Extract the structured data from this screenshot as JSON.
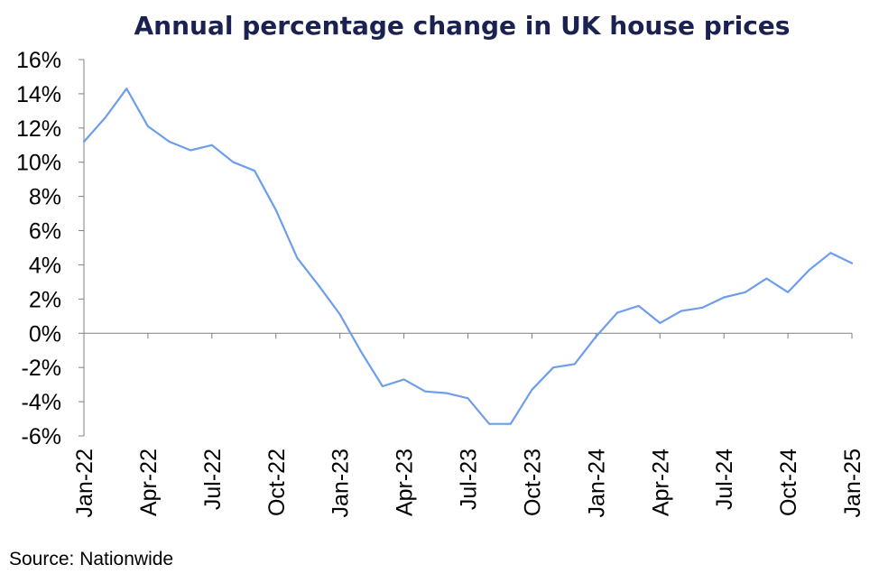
{
  "chart_data": {
    "type": "line",
    "title": "Annual percentage change in UK house prices",
    "source": "Source: Nationwide",
    "xlabel": "",
    "ylabel": "",
    "ylim": [
      -6,
      16
    ],
    "yticks": [
      16,
      14,
      12,
      10,
      8,
      6,
      4,
      2,
      0,
      -2,
      -4,
      -6
    ],
    "ytick_labels": [
      "16%",
      "14%",
      "12%",
      "10%",
      "8%",
      "6%",
      "4%",
      "2%",
      "0%",
      "-2%",
      "-4%",
      "-6%"
    ],
    "xtick_labels": [
      "Jan-22",
      "Apr-22",
      "Jul-22",
      "Oct-22",
      "Jan-23",
      "Apr-23",
      "Jul-23",
      "Oct-23",
      "Jan-24",
      "Apr-24",
      "Jul-24",
      "Oct-24",
      "Jan-25"
    ],
    "xtick_indices": [
      0,
      3,
      6,
      9,
      12,
      15,
      18,
      21,
      24,
      27,
      30,
      33,
      36
    ],
    "x": [
      "Jan-22",
      "Feb-22",
      "Mar-22",
      "Apr-22",
      "May-22",
      "Jun-22",
      "Jul-22",
      "Aug-22",
      "Sep-22",
      "Oct-22",
      "Nov-22",
      "Dec-22",
      "Jan-23",
      "Feb-23",
      "Mar-23",
      "Apr-23",
      "May-23",
      "Jun-23",
      "Jul-23",
      "Aug-23",
      "Sep-23",
      "Oct-23",
      "Nov-23",
      "Dec-23",
      "Jan-24",
      "Feb-24",
      "Mar-24",
      "Apr-24",
      "May-24",
      "Jun-24",
      "Jul-24",
      "Aug-24",
      "Sep-24",
      "Oct-24",
      "Nov-24",
      "Dec-24",
      "Jan-25"
    ],
    "series": [
      {
        "name": "Annual % change",
        "color": "#6d9eeb",
        "values": [
          11.2,
          12.6,
          14.3,
          12.1,
          11.2,
          10.7,
          11.0,
          10.0,
          9.5,
          7.2,
          4.4,
          2.8,
          1.1,
          -1.1,
          -3.1,
          -2.7,
          -3.4,
          -3.5,
          -3.8,
          -5.3,
          -5.3,
          -3.3,
          -2.0,
          -1.8,
          -0.2,
          1.2,
          1.6,
          0.6,
          1.3,
          1.5,
          2.1,
          2.4,
          3.2,
          2.4,
          3.7,
          4.7,
          4.1
        ]
      }
    ],
    "grid": false,
    "zero_line_color": "#808080",
    "axis_color": "#808080"
  }
}
